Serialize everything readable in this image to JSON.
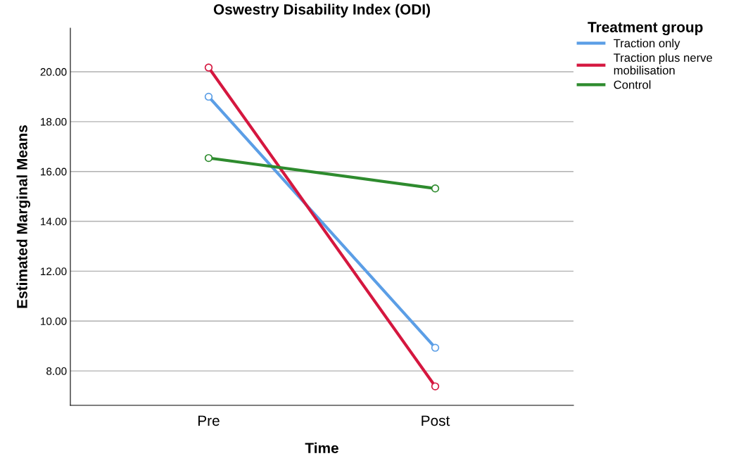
{
  "chart_data": {
    "type": "line",
    "title": "Oswestry Disability Index (ODI)",
    "xlabel": "Time",
    "ylabel": "Estimated Marginal Means",
    "legend_title": "Treatment group",
    "categories": [
      "Pre",
      "Post"
    ],
    "series": [
      {
        "name": "Traction only",
        "color": "#5b9ee6",
        "values": [
          19.0,
          8.93
        ]
      },
      {
        "name": "Traction plus nerve\nmobilisation",
        "color": "#d5173f",
        "values": [
          20.17,
          7.38
        ]
      },
      {
        "name": "Control",
        "color": "#2e8b2e",
        "values": [
          16.54,
          15.32
        ]
      }
    ],
    "ylim": [
      6.62,
      21.75
    ],
    "yticks": [
      {
        "value": 8,
        "label": "8.00"
      },
      {
        "value": 10,
        "label": "10.00"
      },
      {
        "value": 12,
        "label": "12.00"
      },
      {
        "value": 14,
        "label": "14.00"
      },
      {
        "value": 16,
        "label": "16.00"
      },
      {
        "value": 18,
        "label": "18.00"
      },
      {
        "value": 20,
        "label": "20.00"
      }
    ],
    "grid": "y",
    "legend": "top right",
    "marker": "circle",
    "line_style": "solid"
  }
}
